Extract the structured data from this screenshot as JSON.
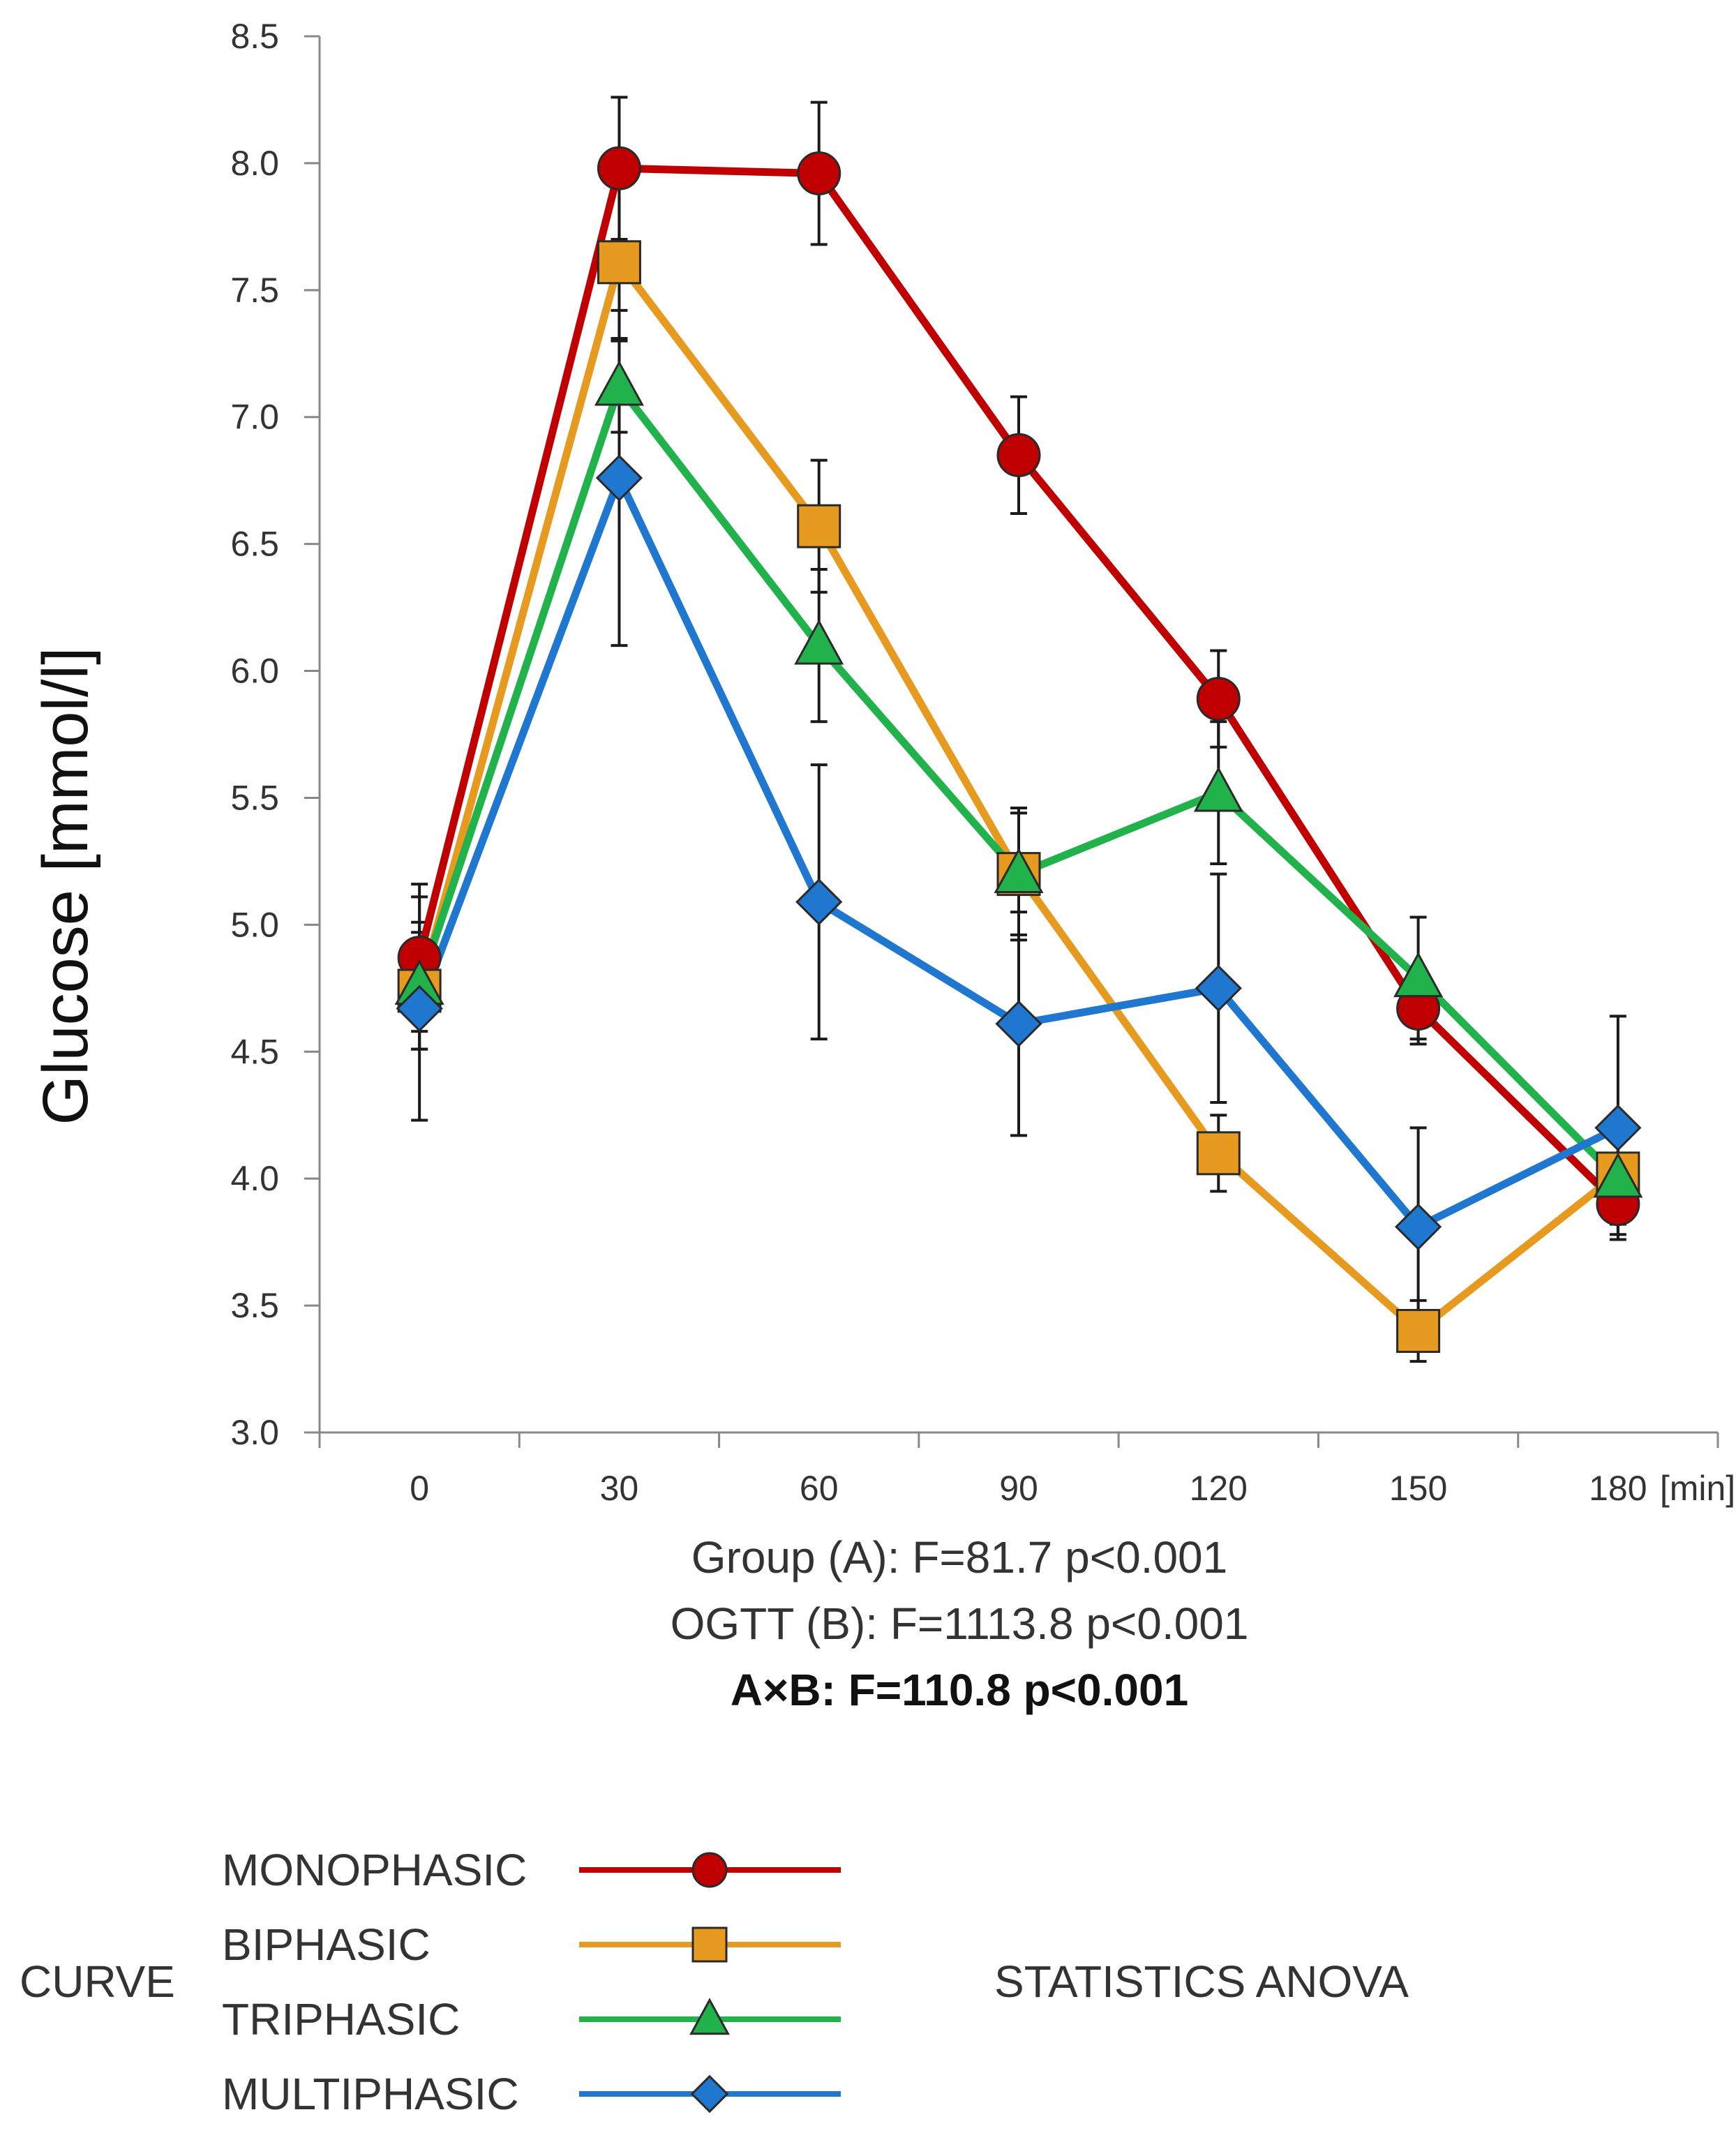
{
  "chart_data": {
    "type": "line",
    "title": "",
    "xlabel": "[min]",
    "ylabel": "Glucose  [mmol/l]",
    "categories": [
      "0",
      "30",
      "60",
      "90",
      "120",
      "150",
      "180"
    ],
    "ylim": [
      3.0,
      8.5
    ],
    "yticks": [
      "3.0",
      "3.5",
      "4.0",
      "4.5",
      "5.0",
      "5.5",
      "6.0",
      "6.5",
      "7.0",
      "7.5",
      "8.0",
      "8.5"
    ],
    "series": [
      {
        "name": "MONOPHASIC",
        "color": "#C00000",
        "marker": "circle",
        "values": [
          4.87,
          7.98,
          7.96,
          6.85,
          5.89,
          4.67,
          3.9
        ],
        "errors": [
          0.29,
          0.28,
          0.28,
          0.23,
          0.19,
          0.14,
          0.12
        ]
      },
      {
        "name": "BIPHASIC",
        "color": "#E69A1F",
        "marker": "square",
        "values": [
          4.74,
          7.61,
          6.57,
          5.2,
          4.1,
          3.4,
          4.02
        ],
        "errors": [
          0.23,
          0.3,
          0.26,
          0.26,
          0.15,
          0.12,
          0.15
        ]
      },
      {
        "name": "TRIPHASIC",
        "color": "#22B24C",
        "marker": "triangle",
        "values": [
          4.76,
          7.12,
          6.1,
          5.2,
          5.52,
          4.79,
          4.0
        ],
        "errors": [
          0.25,
          0.18,
          0.3,
          0.24,
          0.28,
          0.24,
          0.18
        ]
      },
      {
        "name": "MULTIPHASIC",
        "color": "#1F77CF",
        "marker": "diamond",
        "values": [
          4.67,
          6.76,
          5.09,
          4.61,
          4.75,
          3.81,
          4.2
        ],
        "errors": [
          0.44,
          0.66,
          0.54,
          0.44,
          0.45,
          0.39,
          0.44
        ]
      }
    ]
  },
  "stats": {
    "line1": "Group (A): F=81.7 p<0.001",
    "line2": "OGTT (B): F=1113.8 p<0.001",
    "line3": "A×B: F=110.8 p<0.001"
  },
  "legend": {
    "curve_label": "CURVE",
    "statistics_label": "STATISTICS ANOVA",
    "items": [
      "MONOPHASIC",
      "BIPHASIC",
      "TRIPHASIC",
      "MULTIPHASIC"
    ]
  }
}
